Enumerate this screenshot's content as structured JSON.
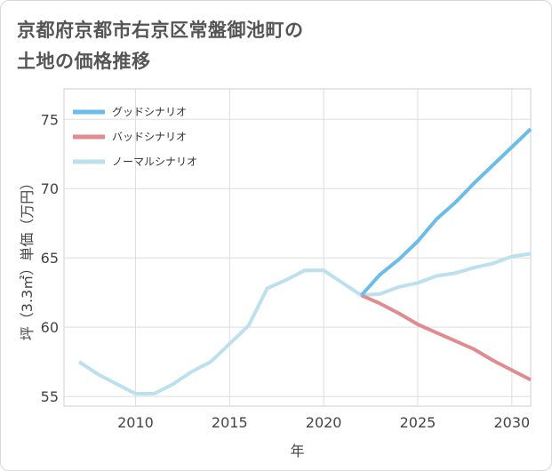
{
  "title_line1": "京都府京都市右京区常盤御池町の",
  "title_line2": "土地の価格推移",
  "chart_data": {
    "type": "line",
    "xlabel": "年",
    "ylabel": "坪（3.3㎡）単価（万円）",
    "xlim": [
      2006.2,
      2031
    ],
    "ylim": [
      54.3,
      77.2
    ],
    "x_ticks": [
      2010,
      2015,
      2020,
      2025,
      2030
    ],
    "y_ticks": [
      55,
      60,
      65,
      70,
      75
    ],
    "grid": true,
    "legend_position": "top-left",
    "series": [
      {
        "name": "グッドシナリオ",
        "color": "#6bbde9",
        "points": [
          [
            2022,
            62.3
          ],
          [
            2023,
            63.8
          ],
          [
            2024,
            64.9
          ],
          [
            2025,
            66.2
          ],
          [
            2026,
            67.8
          ],
          [
            2027,
            69.0
          ],
          [
            2028,
            70.4
          ],
          [
            2029,
            71.7
          ],
          [
            2030,
            73.0
          ],
          [
            2031,
            74.3
          ]
        ]
      },
      {
        "name": "バッドシナリオ",
        "color": "#e08b8f",
        "points": [
          [
            2022,
            62.3
          ],
          [
            2023,
            61.7
          ],
          [
            2024,
            61.0
          ],
          [
            2025,
            60.2
          ],
          [
            2026,
            59.6
          ],
          [
            2027,
            59.0
          ],
          [
            2028,
            58.4
          ],
          [
            2029,
            57.6
          ],
          [
            2030,
            56.9
          ],
          [
            2031,
            56.2
          ]
        ]
      },
      {
        "name": "ノーマルシナリオ",
        "color": "#bde0ee",
        "points": [
          [
            2007,
            57.5
          ],
          [
            2008,
            56.6
          ],
          [
            2009,
            55.9
          ],
          [
            2010,
            55.2
          ],
          [
            2011,
            55.2
          ],
          [
            2012,
            55.9
          ],
          [
            2013,
            56.8
          ],
          [
            2014,
            57.5
          ],
          [
            2015,
            58.8
          ],
          [
            2016,
            60.1
          ],
          [
            2017,
            62.8
          ],
          [
            2018,
            63.4
          ],
          [
            2019,
            64.1
          ],
          [
            2020,
            64.1
          ],
          [
            2021,
            63.2
          ],
          [
            2022,
            62.3
          ],
          [
            2023,
            62.4
          ],
          [
            2024,
            62.9
          ],
          [
            2025,
            63.2
          ],
          [
            2026,
            63.7
          ],
          [
            2027,
            63.9
          ],
          [
            2028,
            64.3
          ],
          [
            2029,
            64.6
          ],
          [
            2030,
            65.1
          ],
          [
            2031,
            65.3
          ]
        ]
      }
    ]
  }
}
